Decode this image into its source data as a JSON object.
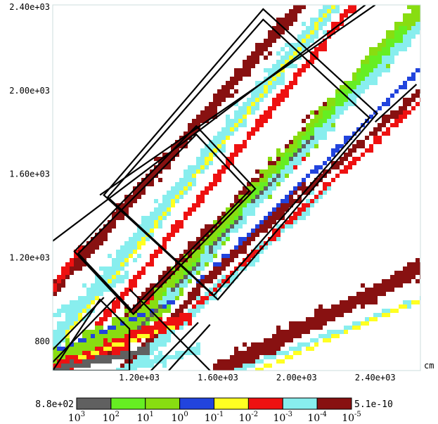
{
  "chart_data": {
    "type": "heatmap",
    "title": "",
    "xlabel": "",
    "ylabel": "",
    "x_unit": "cm",
    "xlim": [
      760,
      2630
    ],
    "ylim": [
      660,
      2410
    ],
    "x_ticks": [
      {
        "value": 1200,
        "label": "1.20e+03"
      },
      {
        "value": 1600,
        "label": "1.60e+03"
      },
      {
        "value": 2000,
        "label": "2.00e+03"
      },
      {
        "value": 2400,
        "label": "2.40e+03"
      }
    ],
    "y_ticks": [
      {
        "value": 800,
        "label": "800"
      },
      {
        "value": 1200,
        "label": "1.20e+03"
      },
      {
        "value": 1600,
        "label": "1.60e+03"
      },
      {
        "value": 2000,
        "label": "2.00e+03"
      },
      {
        "value": 2400,
        "label": "2.40e+03"
      }
    ],
    "colorbar": {
      "max_label": "8.8e+02",
      "min_label": "5.1e-10",
      "colors": [
        "#606060",
        "#66ee22",
        "#88dd11",
        "#2244dd",
        "#ffff22",
        "#ee1111",
        "#88eeee",
        "#881111"
      ],
      "boundary_labels": [
        {
          "base": "10",
          "exp": "3"
        },
        {
          "base": "10",
          "exp": "2"
        },
        {
          "base": "10",
          "exp": "1"
        },
        {
          "base": "10",
          "exp": "0"
        },
        {
          "base": "10",
          "exp": "-1"
        },
        {
          "base": "10",
          "exp": "-2"
        },
        {
          "base": "10",
          "exp": "-3"
        },
        {
          "base": "10",
          "exp": "-4"
        },
        {
          "base": "10",
          "exp": "-5"
        }
      ]
    },
    "colors": {
      "c0": "#606060",
      "c1": "#66ee22",
      "c2": "#88dd11",
      "c3": "#2244dd",
      "c4": "#ffff22",
      "c5": "#ee1111",
      "c6": "#88eeee",
      "c7": "#881111"
    },
    "bands": [
      {
        "x": [
          760,
          2180
        ],
        "y": [
          800,
          2400
        ],
        "width": 95,
        "level": 6
      },
      {
        "x": [
          760,
          2030
        ],
        "y": [
          1040,
          2420
        ],
        "width": 70,
        "level": 7
      },
      {
        "x": [
          820,
          2200
        ],
        "y": [
          820,
          2420
        ],
        "width": 22,
        "level": 4
      },
      {
        "x": [
          900,
          2300
        ],
        "y": [
          760,
          2420
        ],
        "width": 40,
        "level": 5
      },
      {
        "x": [
          1000,
          2260
        ],
        "y": [
          760,
          2000
        ],
        "width": 90,
        "level": 7
      },
      {
        "x": [
          1080,
          2110
        ],
        "y": [
          760,
          1800
        ],
        "width": 80,
        "level": 5
      },
      {
        "x": [
          1100,
          2050
        ],
        "y": [
          660,
          1560
        ],
        "width": 30,
        "level": 7
      },
      {
        "x": [
          1150,
          2150
        ],
        "y": [
          660,
          1530
        ],
        "width": 55,
        "level": 6
      },
      {
        "x": [
          1200,
          2630
        ],
        "y": [
          880,
          2380
        ],
        "width": 110,
        "level": 2
      },
      {
        "x": [
          1250,
          2550
        ],
        "y": [
          900,
          2300
        ],
        "width": 55,
        "level": 1
      },
      {
        "x": [
          1300,
          2620
        ],
        "y": [
          960,
          2300
        ],
        "width": 55,
        "level": 6
      },
      {
        "x": [
          1500,
          2630
        ],
        "y": [
          1080,
          2100
        ],
        "width": 22,
        "level": 3
      },
      {
        "x": [
          1450,
          2630
        ],
        "y": [
          1020,
          2000
        ],
        "width": 38,
        "level": 7
      },
      {
        "x": [
          1480,
          2630
        ],
        "y": [
          960,
          1950
        ],
        "width": 28,
        "level": 5
      },
      {
        "x": [
          1600,
          2630
        ],
        "y": [
          660,
          1150
        ],
        "width": 95,
        "level": 7
      },
      {
        "x": [
          1700,
          2630
        ],
        "y": [
          660,
          1000
        ],
        "width": 28,
        "level": 6
      },
      {
        "x": [
          1800,
          2630
        ],
        "y": [
          660,
          1000
        ],
        "width": 18,
        "level": 4
      },
      {
        "x": [
          760,
          1300
        ],
        "y": [
          700,
          960
        ],
        "width": 110,
        "level": 2
      },
      {
        "x": [
          760,
          1450
        ],
        "y": [
          660,
          920
        ],
        "width": 70,
        "level": 5
      },
      {
        "x": [
          760,
          1250
        ],
        "y": [
          660,
          760
        ],
        "width": 45,
        "level": 0
      },
      {
        "x": [
          800,
          1400
        ],
        "y": [
          760,
          1000
        ],
        "width": 18,
        "level": 3
      },
      {
        "x": [
          900,
          1400
        ],
        "y": [
          720,
          880
        ],
        "width": 16,
        "level": 4
      },
      {
        "x": [
          1100,
          1500
        ],
        "y": [
          660,
          760
        ],
        "width": 60,
        "level": 6
      },
      {
        "x": [
          760,
          1150
        ],
        "y": [
          920,
          1120
        ],
        "width": 40,
        "level": 6
      },
      {
        "x": [
          760,
          900
        ],
        "y": [
          1050,
          1250
        ],
        "width": 35,
        "level": 5
      },
      {
        "x": [
          1200,
          2100
        ],
        "y": [
          860,
          1800
        ],
        "width": 14,
        "level": 0
      }
    ],
    "outline_rects": [
      {
        "corners": [
          [
            1830,
            2390
          ],
          [
            2410,
            1890
          ],
          [
            1600,
            1000
          ],
          [
            1020,
            1500
          ]
        ]
      },
      {
        "corners": [
          [
            1830,
            2340
          ],
          [
            2370,
            1870
          ],
          [
            1580,
            1020
          ],
          [
            1040,
            1490
          ]
        ]
      },
      {
        "corners": [
          [
            1490,
            1830
          ],
          [
            1790,
            1530
          ],
          [
            1170,
            930
          ],
          [
            870,
            1230
          ]
        ]
      },
      {
        "corners": [
          [
            1490,
            1790
          ],
          [
            1760,
            1520
          ],
          [
            1160,
            950
          ],
          [
            890,
            1220
          ]
        ]
      },
      {
        "corners": [
          [
            1000,
            1000
          ],
          [
            1150,
            860
          ],
          [
            1150,
            660
          ],
          [
            760,
            660
          ]
        ]
      }
    ],
    "outline_lines": [
      [
        [
          1000,
          1500
        ],
        [
          2400,
          2410
        ]
      ],
      [
        [
          760,
          1280
        ],
        [
          2350,
          2410
        ]
      ],
      [
        [
          2400,
          1850
        ],
        [
          2610,
          2030
        ]
      ],
      [
        [
          760,
          760
        ],
        [
          1020,
          1010
        ]
      ],
      [
        [
          760,
          700
        ],
        [
          1080,
          1010
        ]
      ],
      [
        [
          1350,
          660
        ],
        [
          1560,
          880
        ]
      ],
      [
        [
          1260,
          660
        ],
        [
          1500,
          890
        ]
      ],
      [
        [
          1150,
          1050
        ],
        [
          1560,
          660
        ]
      ]
    ],
    "grid": false,
    "legend_position": "bottom"
  }
}
